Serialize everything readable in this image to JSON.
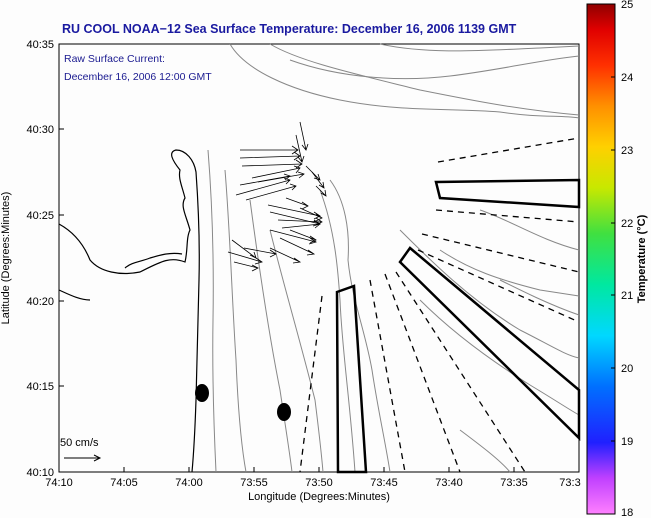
{
  "title": "RU COOL  NOAA−12  Sea Surface Temperature:  December 16, 2006 1139 GMT",
  "current_label": {
    "line1": "Raw Surface Current:",
    "line2": "December 16, 2006 12:00 GMT"
  },
  "scale_label": "50 cm/s",
  "axes": {
    "xlabel": "Longitude (Degrees:Minutes)",
    "ylabel": "Latitude (Degrees:Minutes)",
    "x_ticks": [
      "74:10",
      "74:05",
      "74:00",
      "73:55",
      "73:50",
      "73:45",
      "73:40",
      "73:35",
      "73:3"
    ],
    "y_ticks": [
      "40:35",
      "40:30",
      "40:25",
      "40:20",
      "40:15",
      "40:10"
    ]
  },
  "colorbar": {
    "label": "Temperature (°C)",
    "ticks": [
      "25",
      "24",
      "23",
      "22",
      "21",
      "20",
      "19",
      "18"
    ],
    "min": 18,
    "max": 25
  },
  "colors": {
    "title": "#1a1aa0",
    "land_outline": "#000000",
    "bathymetry": "#888888",
    "ocean": "#fdfdfd"
  }
}
